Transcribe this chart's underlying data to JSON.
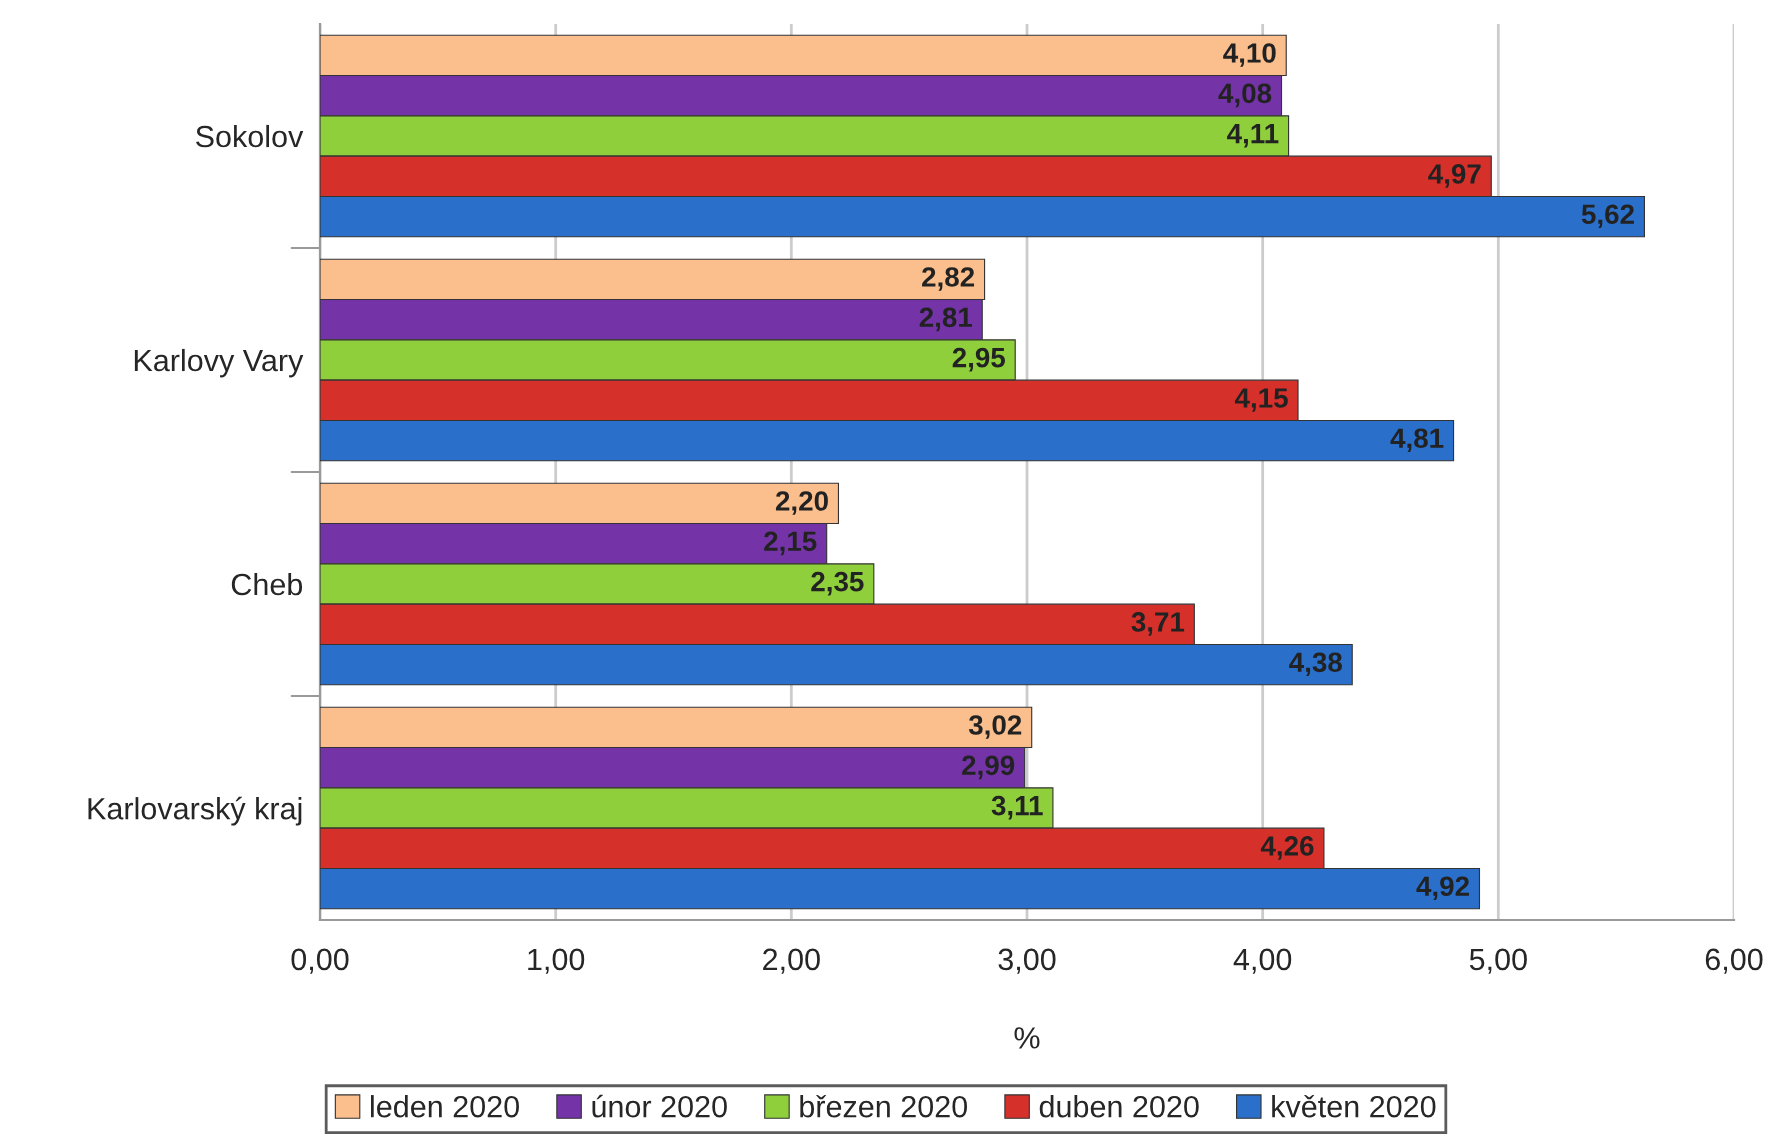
{
  "chart_data": {
    "type": "bar",
    "orientation": "horizontal",
    "categories": [
      "Sokolov",
      "Karlovy Vary",
      "Cheb",
      "Karlovarský kraj"
    ],
    "xlabel": "%",
    "xlim": [
      0,
      6
    ],
    "xticks": [
      {
        "value": 0,
        "label": "0,00"
      },
      {
        "value": 1,
        "label": "1,00"
      },
      {
        "value": 2,
        "label": "2,00"
      },
      {
        "value": 3,
        "label": "3,00"
      },
      {
        "value": 4,
        "label": "4,00"
      },
      {
        "value": 5,
        "label": "5,00"
      },
      {
        "value": 6,
        "label": "6,00"
      }
    ],
    "grid": "x",
    "legend": "bottom",
    "series": [
      {
        "name": "leden 2020",
        "color": "#fbbf8e",
        "values": [
          4.1,
          2.82,
          2.2,
          3.02
        ],
        "value_labels": [
          "4,10",
          "2,82",
          "2,20",
          "3,02"
        ]
      },
      {
        "name": "únor 2020",
        "color": "#7434a8",
        "values": [
          4.08,
          2.81,
          2.15,
          2.99
        ],
        "value_labels": [
          "4,08",
          "2,81",
          "2,15",
          "2,99"
        ]
      },
      {
        "name": "březen 2020",
        "color": "#8fcf3c",
        "values": [
          4.11,
          2.95,
          2.35,
          3.11
        ],
        "value_labels": [
          "4,11",
          "2,95",
          "2,35",
          "3,11"
        ]
      },
      {
        "name": "duben 2020",
        "color": "#d6302b",
        "values": [
          4.97,
          4.15,
          3.71,
          4.26
        ],
        "value_labels": [
          "4,97",
          "4,15",
          "3,71",
          "4,26"
        ]
      },
      {
        "name": "květen 2020",
        "color": "#2a6fc9",
        "values": [
          5.62,
          4.81,
          4.38,
          4.92
        ],
        "value_labels": [
          "5,62",
          "4,81",
          "4,38",
          "4,92"
        ]
      }
    ]
  }
}
